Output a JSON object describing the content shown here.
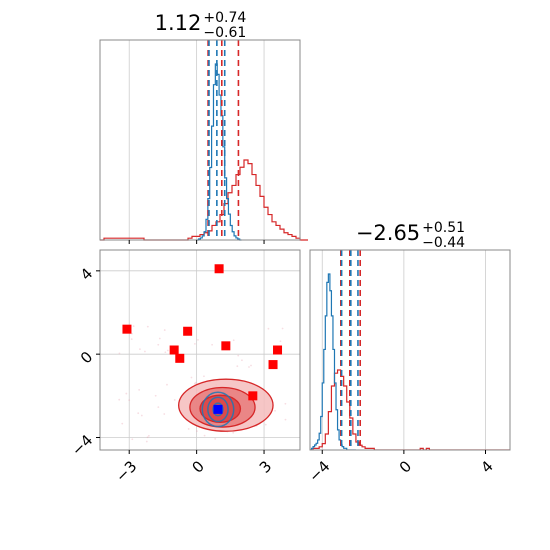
{
  "chart_data": {
    "type": "corner",
    "parameters": [
      {
        "id": "p1",
        "title_value": "1.12",
        "title_upper": "+0.74",
        "title_lower": "−0.61",
        "range": [
          -4.3,
          4.6
        ],
        "ticks": [
          -3,
          0,
          3
        ],
        "tick_labels": [
          "−3",
          "0",
          "3"
        ],
        "hist_red": {
          "edges_start": -4.3,
          "bin_width": 0.178,
          "counts": [
            0,
            1,
            1,
            1,
            1,
            1,
            1,
            1,
            1,
            1,
            1,
            0,
            0,
            0,
            0,
            0,
            0,
            0,
            0,
            0,
            0,
            0,
            1,
            2,
            2,
            3,
            4,
            5,
            8,
            10,
            14,
            20,
            26,
            30,
            36,
            40,
            44,
            42,
            36,
            30,
            24,
            18,
            14,
            10,
            8,
            6,
            4,
            3,
            2,
            1,
            0,
            0
          ]
        },
        "hist_blue": {
          "edges_start": 0.0,
          "bin_width": 0.0833,
          "counts": [
            0,
            1,
            2,
            4,
            8,
            20,
            40,
            70,
            110,
            150,
            170,
            160,
            140,
            120,
            90,
            60,
            40,
            25,
            14,
            8,
            4,
            2,
            1,
            0
          ]
        },
        "quantiles_red": [
          0.51,
          1.12,
          1.86
        ],
        "quantiles_blue": [
          0.55,
          0.9,
          1.25
        ],
        "quantile_colors": {
          "red": "#d62728",
          "blue": "#1f77b4"
        }
      },
      {
        "id": "p2",
        "title_value": "−2.65",
        "title_upper": "+0.51",
        "title_lower": "−0.44",
        "range": [
          -4.6,
          5.2
        ],
        "ticks": [
          -4,
          0,
          4
        ],
        "tick_labels": [
          "−4",
          "0",
          "4"
        ],
        "hist_red": {
          "edges_start": -4.6,
          "bin_width": 0.15,
          "counts": [
            0,
            1,
            1,
            2,
            4,
            10,
            24,
            40,
            48,
            50,
            46,
            40,
            30,
            20,
            10,
            5,
            3,
            2,
            1,
            1,
            1,
            0,
            0,
            0,
            0,
            0,
            0,
            0,
            0,
            0,
            0,
            0,
            0,
            0,
            0,
            0,
            1,
            0,
            1,
            0,
            0,
            0,
            0,
            0,
            0,
            0,
            0,
            0,
            0,
            0,
            0,
            0,
            0,
            0,
            0,
            0,
            0,
            0,
            0,
            0,
            0,
            0,
            0,
            0,
            0,
            0
          ]
        },
        "hist_blue": {
          "edges_start": -4.6,
          "bin_width": 0.075,
          "counts": [
            0,
            1,
            2,
            3,
            4,
            6,
            10,
            20,
            40,
            60,
            80,
            100,
            105,
            95,
            80,
            60,
            40,
            24,
            12,
            6,
            3,
            2,
            1,
            1,
            0,
            0,
            0,
            0,
            0,
            0
          ]
        },
        "quantiles_red": [
          -3.09,
          -2.65,
          -2.14
        ],
        "quantiles_blue": [
          -3.05,
          -2.6,
          -2.25
        ],
        "quantile_colors": {
          "red": "#d62728",
          "blue": "#1f77b4"
        }
      }
    ],
    "joint": {
      "x_range": [
        -4.3,
        4.6
      ],
      "y_range": [
        -4.6,
        5.0
      ],
      "x_ticks": [
        -3,
        0,
        3
      ],
      "x_tick_labels": [
        "−3",
        "0",
        "3"
      ],
      "y_ticks": [
        -4,
        0,
        4
      ],
      "y_tick_labels": [
        "−4",
        "0",
        "4"
      ],
      "red_markers": [
        {
          "x": -3.1,
          "y": 1.2
        },
        {
          "x": 1.0,
          "y": 4.1
        },
        {
          "x": -0.4,
          "y": 1.1
        },
        {
          "x": -1.0,
          "y": 0.2
        },
        {
          "x": -0.75,
          "y": -0.2
        },
        {
          "x": 1.3,
          "y": 0.4
        },
        {
          "x": 3.6,
          "y": 0.2
        },
        {
          "x": 3.4,
          "y": -0.5
        },
        {
          "x": 2.5,
          "y": -2.0
        }
      ],
      "blue_marker": {
        "x": 0.95,
        "y": -2.65
      },
      "red_contours": [
        {
          "cx": 1.3,
          "cy": -2.45,
          "rx": 2.1,
          "ry": 1.25,
          "level": 1
        },
        {
          "cx": 1.15,
          "cy": -2.55,
          "rx": 1.45,
          "ry": 0.95,
          "level": 2
        },
        {
          "cx": 1.05,
          "cy": -2.62,
          "rx": 0.9,
          "ry": 0.65,
          "level": 3
        }
      ],
      "blue_contours": [
        {
          "cx": 0.95,
          "cy": -2.65,
          "rx": 0.7,
          "ry": 0.82
        },
        {
          "cx": 0.95,
          "cy": -2.65,
          "rx": 0.45,
          "ry": 0.58
        },
        {
          "cx": 0.95,
          "cy": -2.65,
          "rx": 0.22,
          "ry": 0.3
        }
      ]
    },
    "colors": {
      "red": "#d62728",
      "blue": "#1f77b4",
      "blue_marker": "#0000ff",
      "grid": "#cccccc",
      "spine": "#888888"
    },
    "grid": true
  }
}
